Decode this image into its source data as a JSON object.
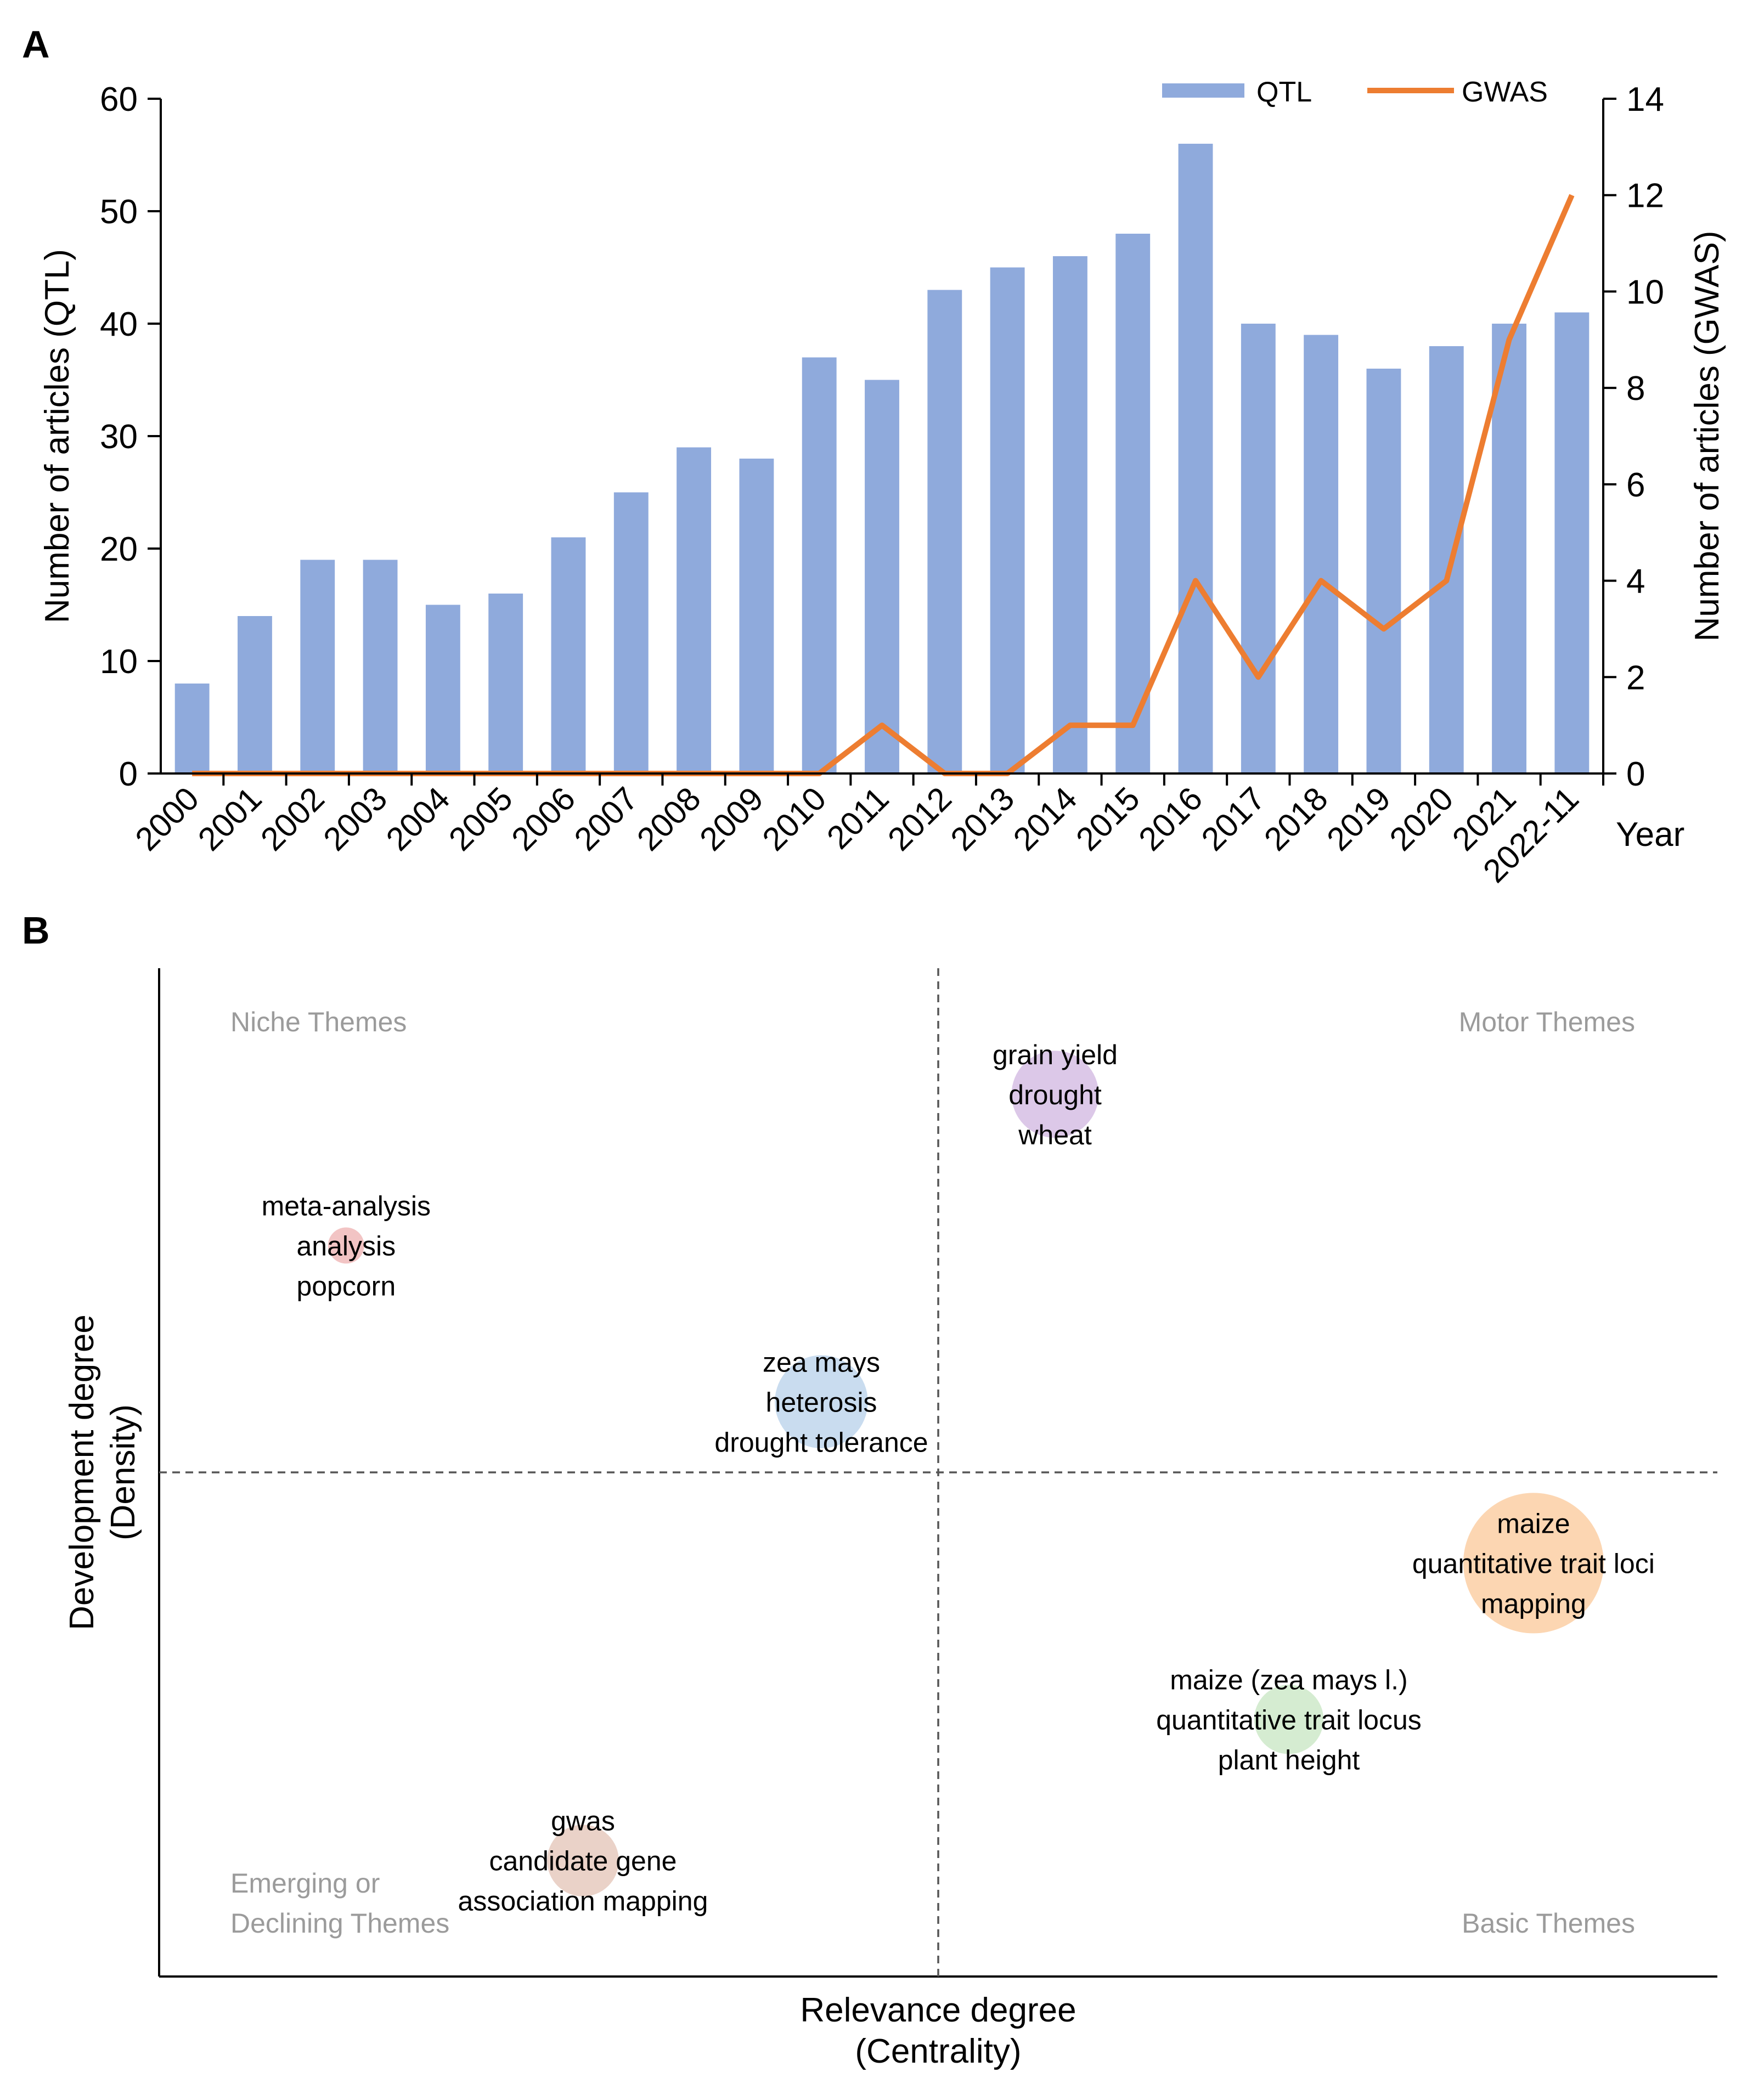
{
  "panel_labels": {
    "a": "A",
    "b": "B"
  },
  "colors": {
    "qtl_bar": "#8faadc",
    "gwas_line": "#ed7d31",
    "axis": "#000000",
    "quadrant_label": "#9b9b9b",
    "divider": "#555555"
  },
  "chart_data": [
    {
      "type": "bar",
      "title": "",
      "categories": [
        "2000",
        "2001",
        "2002",
        "2003",
        "2004",
        "2005",
        "2006",
        "2007",
        "2008",
        "2009",
        "2010",
        "2011",
        "2012",
        "2013",
        "2014",
        "2015",
        "2016",
        "2017",
        "2018",
        "2019",
        "2020",
        "2021",
        "2022-11"
      ],
      "series": [
        {
          "name": "QTL",
          "type": "bar",
          "axis": "left",
          "values": [
            8,
            14,
            19,
            19,
            15,
            16,
            21,
            25,
            29,
            28,
            37,
            35,
            43,
            45,
            46,
            48,
            56,
            40,
            39,
            36,
            38,
            40,
            41
          ]
        },
        {
          "name": "GWAS",
          "type": "line",
          "axis": "right",
          "values": [
            0,
            0,
            0,
            0,
            0,
            0,
            0,
            0,
            0,
            0,
            0,
            1,
            0,
            0,
            1,
            1,
            4,
            2,
            4,
            3,
            4,
            9,
            12
          ]
        }
      ],
      "xlabel": "Year",
      "ylabel": "Number of articles (QTL)",
      "y2label": "Number of articles (GWAS)",
      "ylim": [
        0,
        60
      ],
      "y2lim": [
        0,
        14
      ],
      "yticks": [
        "0",
        "10",
        "20",
        "30",
        "40",
        "50",
        "60"
      ],
      "y2ticks": [
        "0",
        "2",
        "4",
        "6",
        "8",
        "10",
        "12",
        "14"
      ],
      "legend": [
        {
          "label": "QTL"
        },
        {
          "label": "GWAS"
        }
      ],
      "legend_position": "top-right"
    },
    {
      "type": "scatter",
      "title": "",
      "xlabel": [
        "Relevance degree",
        "(Centrality)"
      ],
      "ylabel": [
        "Development degree",
        "(Density)"
      ],
      "xlim": [
        0,
        1
      ],
      "ylim": [
        0,
        1
      ],
      "quadrant_labels": {
        "top_left": [
          "Niche Themes"
        ],
        "top_right": [
          "Motor Themes"
        ],
        "bottom_left": [
          "Emerging or",
          "Declining Themes"
        ],
        "bottom_right": [
          "Basic Themes"
        ]
      },
      "points": [
        {
          "labels": [
            "grain yield",
            "drought",
            "wheat"
          ],
          "x": 0.575,
          "y": 0.875,
          "size": 0.55,
          "color": "#dcc8e8"
        },
        {
          "labels": [
            "meta-analysis",
            "analysis",
            "popcorn"
          ],
          "x": 0.12,
          "y": 0.725,
          "size": 0.12,
          "color": "#f2c4c4"
        },
        {
          "labels": [
            "zea mays",
            "heterosis",
            "drought tolerance"
          ],
          "x": 0.425,
          "y": 0.57,
          "size": 0.6,
          "color": "#c9dcef"
        },
        {
          "labels": [
            "maize",
            "quantitative trait loci",
            "mapping"
          ],
          "x": 0.882,
          "y": 0.41,
          "size": 1.0,
          "color": "#fcd6b2"
        },
        {
          "labels": [
            "maize (zea mays l.)",
            "quantitative trait locus",
            "plant height"
          ],
          "x": 0.725,
          "y": 0.255,
          "size": 0.4,
          "color": "#d5ecd1"
        },
        {
          "labels": [
            "gwas",
            "candidate gene",
            "association mapping"
          ],
          "x": 0.272,
          "y": 0.115,
          "size": 0.42,
          "color": "#ead2c8"
        }
      ]
    }
  ]
}
